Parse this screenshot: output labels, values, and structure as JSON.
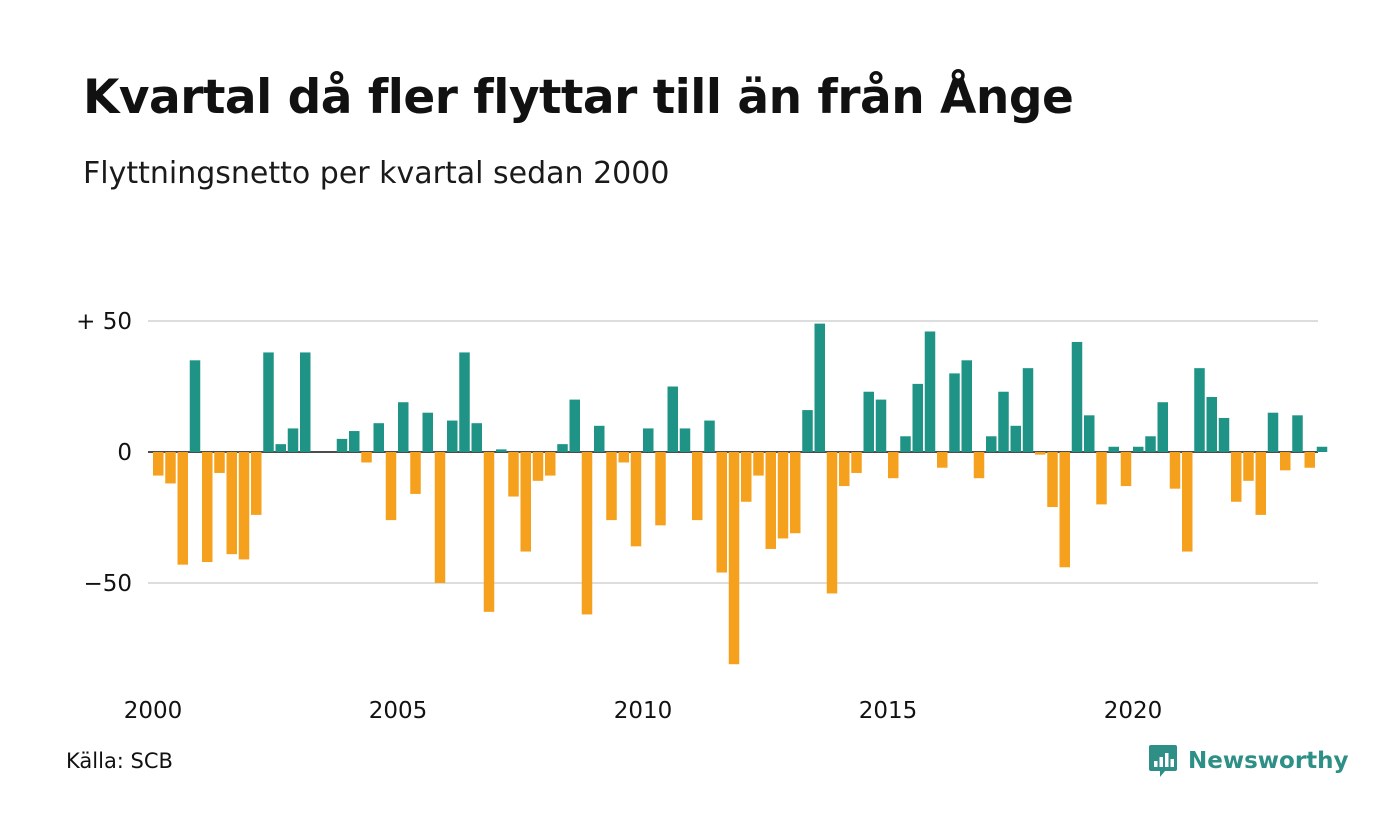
{
  "title": "Kvartal då fler flyttar till än från Ånge",
  "subtitle": "Flyttningsnetto per kvartal sedan 2000",
  "source": "Källa: SCB",
  "brand": {
    "name": "Newsworthy",
    "icon": "newsworthy-logo-icon"
  },
  "colors": {
    "positive": "#1f9486",
    "negative": "#f5a11e",
    "grid": "#dddddd",
    "zero": "#111111"
  },
  "chart_data": {
    "type": "bar",
    "ylim": [
      -85,
      52
    ],
    "y_ticks": [
      {
        "value": 50,
        "label": "+ 50"
      },
      {
        "value": 0,
        "label": "0"
      },
      {
        "value": -50,
        "label": "−50"
      }
    ],
    "x_ticks": [
      {
        "year": 2000,
        "label": "2000"
      },
      {
        "year": 2005,
        "label": "2005"
      },
      {
        "year": 2010,
        "label": "2010"
      },
      {
        "year": 2015,
        "label": "2015"
      },
      {
        "year": 2020,
        "label": "2020"
      }
    ],
    "start_year": 2000,
    "grid": true,
    "values": [
      -9,
      -12,
      -43,
      35,
      -42,
      -8,
      -39,
      -41,
      -24,
      38,
      3,
      9,
      38,
      0,
      0,
      5,
      8,
      -4,
      11,
      -26,
      19,
      -16,
      15,
      -50,
      12,
      38,
      11,
      -61,
      1,
      -17,
      -38,
      -11,
      -9,
      3,
      20,
      -62,
      10,
      -26,
      -4,
      -36,
      9,
      -28,
      25,
      9,
      -26,
      12,
      -46,
      -81,
      -19,
      -9,
      -37,
      -33,
      -31,
      16,
      49,
      -54,
      -13,
      -8,
      23,
      20,
      -10,
      6,
      26,
      46,
      -6,
      30,
      35,
      -10,
      6,
      23,
      10,
      32,
      -1,
      -21,
      -44,
      42,
      14,
      -20,
      2,
      -13,
      2,
      6,
      19,
      -14,
      -38,
      32,
      21,
      13,
      -19,
      -11,
      -24,
      15,
      -7,
      14,
      -6,
      2
    ]
  }
}
